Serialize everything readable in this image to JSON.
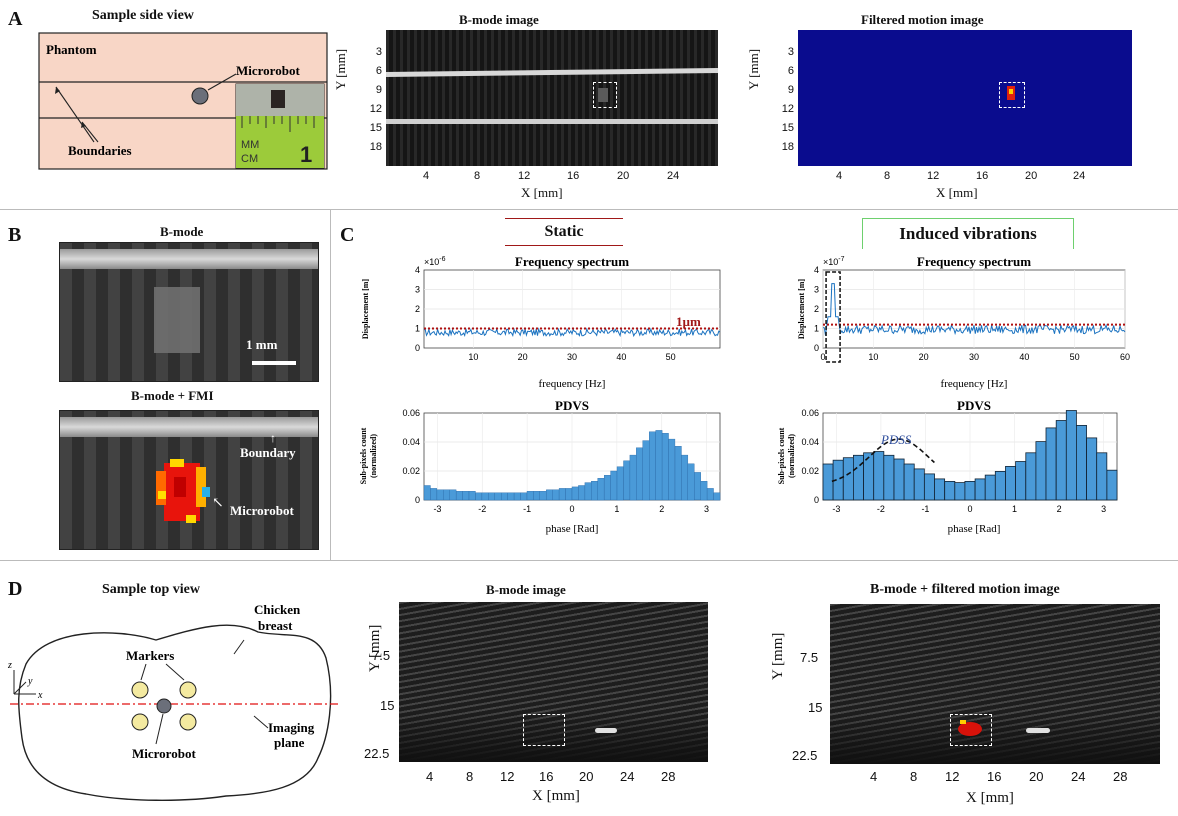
{
  "panels": {
    "A": {
      "letter": "A",
      "side_title": "Sample side view",
      "phantom": "Phantom",
      "microrobot": "Microrobot",
      "boundaries": "Boundaries",
      "ruler_mm": "MM",
      "ruler_cm": "CM",
      "ruler_num": "1",
      "bmode_title": "B-mode image",
      "fmi_title": "Filtered motion image",
      "ylabel": "Y [mm]",
      "xlabel": "X [mm]",
      "yticks": [
        "3",
        "6",
        "9",
        "12",
        "15",
        "18"
      ],
      "xticks": [
        "4",
        "8",
        "12",
        "16",
        "20",
        "24"
      ]
    },
    "B": {
      "letter": "B",
      "top_title": "B-mode",
      "scale": "1 mm",
      "bottom_title": "B-mode + FMI",
      "boundary": "Boundary",
      "microrobot": "Microrobot"
    },
    "C": {
      "letter": "C",
      "static_title": "Static",
      "vib_title": "Induced vibrations",
      "freq_title": "Frequency spectrum",
      "pdvs_title": "PDVS",
      "pdss": "PDSS",
      "threshold": "1µm",
      "disp_ylabel": "Displacement [m]",
      "freq_xlabel": "frequency [Hz]",
      "phase_xlabel": "phase [Rad]",
      "count_ylabel1": "Sub-pixels count",
      "count_ylabel2": "(normalized)",
      "exp_left": "×10",
      "exp_left_pow": "-6",
      "exp_right": "×10",
      "exp_right_pow": "-7"
    },
    "D": {
      "letter": "D",
      "top_title": "Sample top view",
      "chicken": "Chicken",
      "breast": "breast",
      "markers": "Markers",
      "microrobot": "Microrobot",
      "imaging": "Imaging",
      "plane": "plane",
      "axis_z": "z",
      "axis_y": "y",
      "axis_x": "x",
      "bmode_title": "B-mode image",
      "overlay_title": "B-mode + filtered motion image",
      "ylabel": "Y [mm]",
      "xlabel": "X [mm]",
      "yticks": [
        "7.5",
        "15",
        "22.5"
      ],
      "xticks": [
        "4",
        "8",
        "12",
        "16",
        "20",
        "24",
        "28"
      ]
    }
  },
  "chart_data": [
    {
      "type": "line",
      "title": "Frequency spectrum",
      "xlabel": "frequency [Hz]",
      "ylabel": "Displacement [m]",
      "xlim": [
        0,
        60
      ],
      "ylim": [
        0,
        4e-06
      ],
      "xticks": [
        "10",
        "20",
        "30",
        "40",
        "50"
      ],
      "yticks": [
        "0",
        "1",
        "2",
        "3",
        "4"
      ],
      "threshold": 1e-06,
      "noise_level": 8e-07
    },
    {
      "type": "bar",
      "title": "PDVS",
      "xlabel": "phase [Rad]",
      "ylabel": "Sub-pixels count (normalized)",
      "xlim": [
        -3.3,
        3.3
      ],
      "ylim": [
        0,
        0.06
      ],
      "xticks": [
        "-3",
        "-2",
        "-1",
        "0",
        "1",
        "2",
        "3"
      ],
      "yticks": [
        "0",
        "0.02",
        "0.04",
        "0.06"
      ],
      "values": [
        0.01,
        0.008,
        0.007,
        0.007,
        0.007,
        0.006,
        0.006,
        0.006,
        0.005,
        0.005,
        0.005,
        0.005,
        0.005,
        0.005,
        0.005,
        0.005,
        0.006,
        0.006,
        0.006,
        0.007,
        0.007,
        0.008,
        0.008,
        0.009,
        0.01,
        0.012,
        0.013,
        0.015,
        0.017,
        0.02,
        0.023,
        0.027,
        0.031,
        0.036,
        0.041,
        0.047,
        0.048,
        0.046,
        0.042,
        0.037,
        0.031,
        0.025,
        0.019,
        0.013,
        0.008,
        0.005
      ]
    },
    {
      "type": "line",
      "title": "Frequency spectrum",
      "xlabel": "frequency [Hz]",
      "ylabel": "Displacement [m]",
      "xlim": [
        0,
        60
      ],
      "ylim": [
        0,
        4e-07
      ],
      "xticks": [
        "0",
        "10",
        "20",
        "30",
        "40",
        "50",
        "60"
      ],
      "yticks": [
        "0",
        "1",
        "2",
        "3",
        "4"
      ],
      "peak_x": 2,
      "peak_y": 3.3e-07,
      "threshold": 1.2e-07
    },
    {
      "type": "bar",
      "title": "PDVS",
      "xlabel": "phase [Rad]",
      "ylabel": "Sub-pixels count (normalized)",
      "xlim": [
        -3.3,
        3.3
      ],
      "ylim": [
        0,
        0.07
      ],
      "xticks": [
        "-3",
        "-2",
        "-1",
        "0",
        "1",
        "2",
        "3"
      ],
      "yticks": [
        "0",
        "0.02",
        "0.04",
        "0.06"
      ],
      "values": [
        0.029,
        0.032,
        0.034,
        0.036,
        0.038,
        0.039,
        0.036,
        0.033,
        0.029,
        0.025,
        0.021,
        0.017,
        0.015,
        0.014,
        0.015,
        0.017,
        0.02,
        0.023,
        0.027,
        0.031,
        0.038,
        0.047,
        0.058,
        0.064,
        0.072,
        0.06,
        0.05,
        0.038,
        0.024
      ]
    }
  ]
}
